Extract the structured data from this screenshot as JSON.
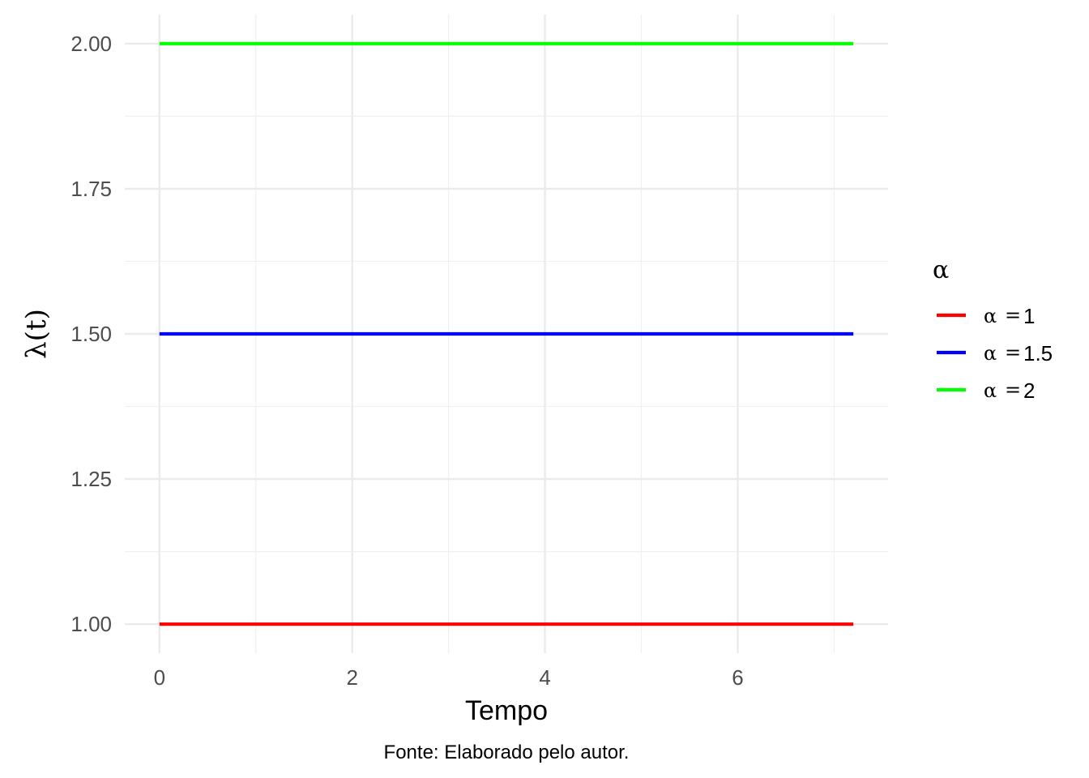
{
  "chart_data": {
    "type": "line",
    "xlabel": "Tempo",
    "ylabel": "λ(t)",
    "caption": "Fonte: Elaborado pelo autor.",
    "xlim": [
      -0.36,
      7.56
    ],
    "ylim": [
      0.95,
      2.05
    ],
    "x_ticks": [
      0,
      2,
      4,
      6
    ],
    "x_tick_labels": [
      "0",
      "2",
      "4",
      "6"
    ],
    "y_ticks": [
      1.0,
      1.25,
      1.5,
      1.75,
      2.0
    ],
    "y_tick_labels": [
      "1.00",
      "1.25",
      "1.50",
      "1.75",
      "2.00"
    ],
    "grid": true,
    "legend": {
      "title": "α",
      "position": "right",
      "entries": [
        {
          "greek": "α",
          "eq": "=",
          "value": "1"
        },
        {
          "greek": "α",
          "eq": "=",
          "value": "1.5"
        },
        {
          "greek": "α",
          "eq": "=",
          "value": "2"
        }
      ]
    },
    "series": [
      {
        "name": "α = 1",
        "color": "#ff0000",
        "x": [
          0,
          7.2
        ],
        "y": [
          1.0,
          1.0
        ]
      },
      {
        "name": "α = 1.5",
        "color": "#0000ff",
        "x": [
          0,
          7.2
        ],
        "y": [
          1.5,
          1.5
        ]
      },
      {
        "name": "α = 2",
        "color": "#00ff00",
        "x": [
          0,
          7.2
        ],
        "y": [
          2.0,
          2.0
        ]
      }
    ]
  }
}
